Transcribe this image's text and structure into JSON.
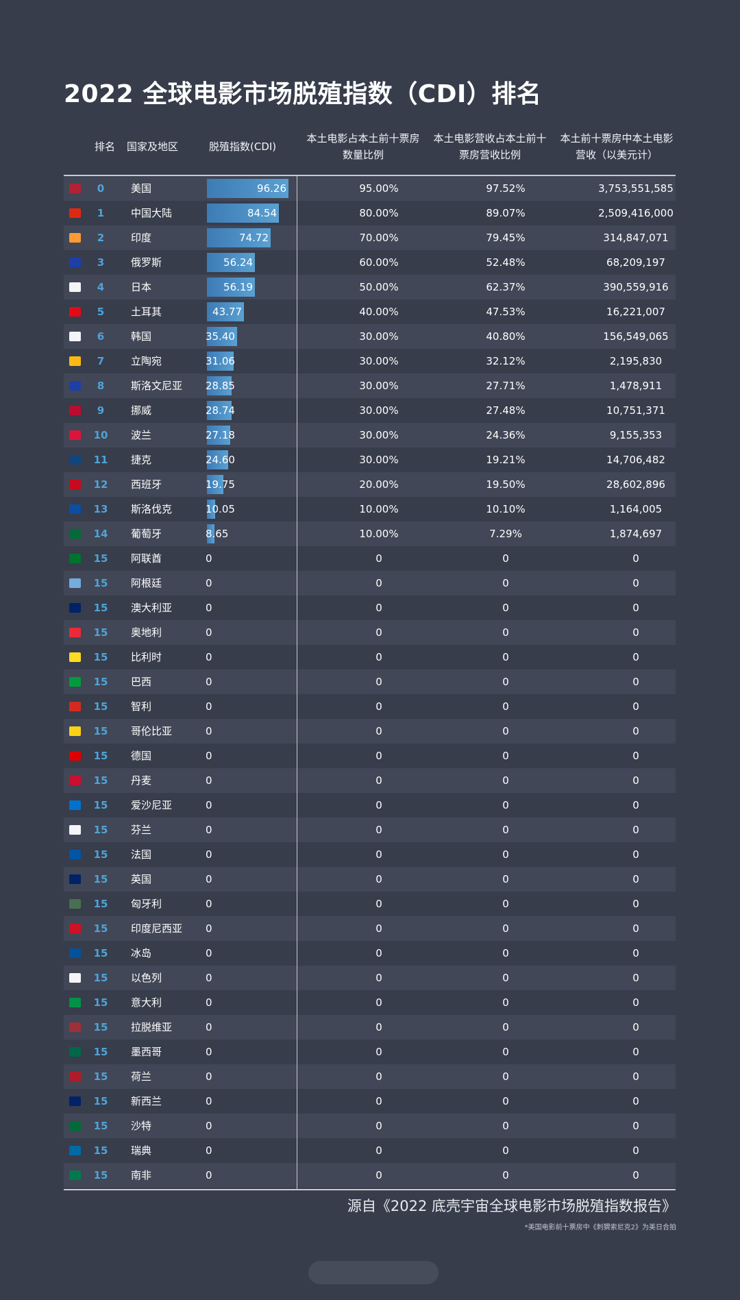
{
  "title": "2022 全球电影市场脱殖指数（CDI）排名",
  "headers": {
    "rank": "排名",
    "country": "国家及地区",
    "cdi": "脱殖指数(CDI)",
    "share_line1": "本土电影占本土前十票房",
    "share_line2": "数量比例",
    "rev_line1": "本土电影营收占本土前十",
    "rev_line2": "票房营收比例",
    "box_line1": "本土前十票房中本土电影",
    "box_line2": "营收（以美元计）"
  },
  "colors": {
    "background": "#373d4b",
    "row_alt": "#414756",
    "rank_text": "#4fa3d8",
    "bar": "#4a8ec6"
  },
  "chart_data": {
    "type": "table",
    "title": "2022 全球电影市场脱殖指数（CDI）排名",
    "cdi_axis_max": 100,
    "rows": [
      {
        "flag": "flag-us",
        "rank": "0",
        "country": "美国",
        "cdi": 96.26,
        "cdi_label": "96.26",
        "share": "95.00%",
        "rev_share": "97.52%",
        "box_office": "3,753,551,585"
      },
      {
        "flag": "flag-cn",
        "rank": "1",
        "country": "中国大陆",
        "cdi": 84.54,
        "cdi_label": "84.54",
        "share": "80.00%",
        "rev_share": "89.07%",
        "box_office": "2,509,416,000"
      },
      {
        "flag": "flag-in",
        "rank": "2",
        "country": "印度",
        "cdi": 74.72,
        "cdi_label": "74.72",
        "share": "70.00%",
        "rev_share": "79.45%",
        "box_office": "314,847,071"
      },
      {
        "flag": "flag-ru",
        "rank": "3",
        "country": "俄罗斯",
        "cdi": 56.24,
        "cdi_label": "56.24",
        "share": "60.00%",
        "rev_share": "52.48%",
        "box_office": "68,209,197"
      },
      {
        "flag": "flag-jp",
        "rank": "4",
        "country": "日本",
        "cdi": 56.19,
        "cdi_label": "56.19",
        "share": "50.00%",
        "rev_share": "62.37%",
        "box_office": "390,559,916"
      },
      {
        "flag": "flag-tr",
        "rank": "5",
        "country": "土耳其",
        "cdi": 43.77,
        "cdi_label": "43.77",
        "share": "40.00%",
        "rev_share": "47.53%",
        "box_office": "16,221,007"
      },
      {
        "flag": "flag-kr",
        "rank": "6",
        "country": "韩国",
        "cdi": 35.4,
        "cdi_label": "35.40",
        "share": "30.00%",
        "rev_share": "40.80%",
        "box_office": "156,549,065"
      },
      {
        "flag": "flag-lt",
        "rank": "7",
        "country": "立陶宛",
        "cdi": 31.06,
        "cdi_label": "31.06",
        "share": "30.00%",
        "rev_share": "32.12%",
        "box_office": "2,195,830"
      },
      {
        "flag": "flag-si",
        "rank": "8",
        "country": "斯洛文尼亚",
        "cdi": 28.85,
        "cdi_label": "28.85",
        "share": "30.00%",
        "rev_share": "27.71%",
        "box_office": "1,478,911"
      },
      {
        "flag": "flag-no",
        "rank": "9",
        "country": "挪威",
        "cdi": 28.74,
        "cdi_label": "28.74",
        "share": "30.00%",
        "rev_share": "27.48%",
        "box_office": "10,751,371"
      },
      {
        "flag": "flag-pl",
        "rank": "10",
        "country": "波兰",
        "cdi": 27.18,
        "cdi_label": "27.18",
        "share": "30.00%",
        "rev_share": "24.36%",
        "box_office": "9,155,353"
      },
      {
        "flag": "flag-cz",
        "rank": "11",
        "country": "捷克",
        "cdi": 24.6,
        "cdi_label": "24.60",
        "share": "30.00%",
        "rev_share": "19.21%",
        "box_office": "14,706,482"
      },
      {
        "flag": "flag-es",
        "rank": "12",
        "country": "西班牙",
        "cdi": 19.75,
        "cdi_label": "19.75",
        "share": "20.00%",
        "rev_share": "19.50%",
        "box_office": "28,602,896"
      },
      {
        "flag": "flag-sk",
        "rank": "13",
        "country": "斯洛伐克",
        "cdi": 10.05,
        "cdi_label": "10.05",
        "share": "10.00%",
        "rev_share": "10.10%",
        "box_office": "1,164,005"
      },
      {
        "flag": "flag-pt",
        "rank": "14",
        "country": "葡萄牙",
        "cdi": 8.65,
        "cdi_label": "8.65",
        "share": "10.00%",
        "rev_share": "7.29%",
        "box_office": "1,874,697"
      },
      {
        "flag": "flag-ae",
        "rank": "15",
        "country": "阿联酋",
        "cdi": 0,
        "cdi_label": "0",
        "share": "0",
        "rev_share": "0",
        "box_office": "0"
      },
      {
        "flag": "flag-ar",
        "rank": "15",
        "country": "阿根廷",
        "cdi": 0,
        "cdi_label": "0",
        "share": "0",
        "rev_share": "0",
        "box_office": "0"
      },
      {
        "flag": "flag-au",
        "rank": "15",
        "country": "澳大利亚",
        "cdi": 0,
        "cdi_label": "0",
        "share": "0",
        "rev_share": "0",
        "box_office": "0"
      },
      {
        "flag": "flag-at",
        "rank": "15",
        "country": "奥地利",
        "cdi": 0,
        "cdi_label": "0",
        "share": "0",
        "rev_share": "0",
        "box_office": "0"
      },
      {
        "flag": "flag-be",
        "rank": "15",
        "country": "比利时",
        "cdi": 0,
        "cdi_label": "0",
        "share": "0",
        "rev_share": "0",
        "box_office": "0"
      },
      {
        "flag": "flag-br",
        "rank": "15",
        "country": "巴西",
        "cdi": 0,
        "cdi_label": "0",
        "share": "0",
        "rev_share": "0",
        "box_office": "0"
      },
      {
        "flag": "flag-cl",
        "rank": "15",
        "country": "智利",
        "cdi": 0,
        "cdi_label": "0",
        "share": "0",
        "rev_share": "0",
        "box_office": "0"
      },
      {
        "flag": "flag-co",
        "rank": "15",
        "country": "哥伦比亚",
        "cdi": 0,
        "cdi_label": "0",
        "share": "0",
        "rev_share": "0",
        "box_office": "0"
      },
      {
        "flag": "flag-de",
        "rank": "15",
        "country": "德国",
        "cdi": 0,
        "cdi_label": "0",
        "share": "0",
        "rev_share": "0",
        "box_office": "0"
      },
      {
        "flag": "flag-dk",
        "rank": "15",
        "country": "丹麦",
        "cdi": 0,
        "cdi_label": "0",
        "share": "0",
        "rev_share": "0",
        "box_office": "0"
      },
      {
        "flag": "flag-ee",
        "rank": "15",
        "country": "爱沙尼亚",
        "cdi": 0,
        "cdi_label": "0",
        "share": "0",
        "rev_share": "0",
        "box_office": "0"
      },
      {
        "flag": "flag-fi",
        "rank": "15",
        "country": "芬兰",
        "cdi": 0,
        "cdi_label": "0",
        "share": "0",
        "rev_share": "0",
        "box_office": "0"
      },
      {
        "flag": "flag-fr",
        "rank": "15",
        "country": "法国",
        "cdi": 0,
        "cdi_label": "0",
        "share": "0",
        "rev_share": "0",
        "box_office": "0"
      },
      {
        "flag": "flag-gb",
        "rank": "15",
        "country": "英国",
        "cdi": 0,
        "cdi_label": "0",
        "share": "0",
        "rev_share": "0",
        "box_office": "0"
      },
      {
        "flag": "flag-hu",
        "rank": "15",
        "country": "匈牙利",
        "cdi": 0,
        "cdi_label": "0",
        "share": "0",
        "rev_share": "0",
        "box_office": "0"
      },
      {
        "flag": "flag-id",
        "rank": "15",
        "country": "印度尼西亚",
        "cdi": 0,
        "cdi_label": "0",
        "share": "0",
        "rev_share": "0",
        "box_office": "0"
      },
      {
        "flag": "flag-is",
        "rank": "15",
        "country": "冰岛",
        "cdi": 0,
        "cdi_label": "0",
        "share": "0",
        "rev_share": "0",
        "box_office": "0"
      },
      {
        "flag": "flag-il",
        "rank": "15",
        "country": "以色列",
        "cdi": 0,
        "cdi_label": "0",
        "share": "0",
        "rev_share": "0",
        "box_office": "0"
      },
      {
        "flag": "flag-it",
        "rank": "15",
        "country": "意大利",
        "cdi": 0,
        "cdi_label": "0",
        "share": "0",
        "rev_share": "0",
        "box_office": "0"
      },
      {
        "flag": "flag-lv",
        "rank": "15",
        "country": "拉脱维亚",
        "cdi": 0,
        "cdi_label": "0",
        "share": "0",
        "rev_share": "0",
        "box_office": "0"
      },
      {
        "flag": "flag-mx",
        "rank": "15",
        "country": "墨西哥",
        "cdi": 0,
        "cdi_label": "0",
        "share": "0",
        "rev_share": "0",
        "box_office": "0"
      },
      {
        "flag": "flag-nl",
        "rank": "15",
        "country": "荷兰",
        "cdi": 0,
        "cdi_label": "0",
        "share": "0",
        "rev_share": "0",
        "box_office": "0"
      },
      {
        "flag": "flag-nz",
        "rank": "15",
        "country": "新西兰",
        "cdi": 0,
        "cdi_label": "0",
        "share": "0",
        "rev_share": "0",
        "box_office": "0"
      },
      {
        "flag": "flag-sa",
        "rank": "15",
        "country": "沙特",
        "cdi": 0,
        "cdi_label": "0",
        "share": "0",
        "rev_share": "0",
        "box_office": "0"
      },
      {
        "flag": "flag-se",
        "rank": "15",
        "country": "瑞典",
        "cdi": 0,
        "cdi_label": "0",
        "share": "0",
        "rev_share": "0",
        "box_office": "0"
      },
      {
        "flag": "flag-za",
        "rank": "15",
        "country": "南非",
        "cdi": 0,
        "cdi_label": "0",
        "share": "0",
        "rev_share": "0",
        "box_office": "0"
      }
    ]
  },
  "flag_colors": {
    "flag-us": "#b22234",
    "flag-cn": "#de2910",
    "flag-in": "#ff9933",
    "flag-ru": "#1c3fa8",
    "flag-jp": "#f5f5f5",
    "flag-tr": "#e30a17",
    "flag-kr": "#f5f5f5",
    "flag-lt": "#fdb913",
    "flag-si": "#1c3fa8",
    "flag-no": "#ba0c2f",
    "flag-pl": "#dc143c",
    "flag-cz": "#11457e",
    "flag-es": "#c60b1e",
    "flag-sk": "#0b4ea2",
    "flag-pt": "#046a38",
    "flag-ae": "#00732f",
    "flag-ar": "#74acdf",
    "flag-au": "#012169",
    "flag-at": "#ed2939",
    "flag-be": "#fdda24",
    "flag-br": "#009c3b",
    "flag-cl": "#d52b1e",
    "flag-co": "#fcd116",
    "flag-de": "#dd0000",
    "flag-dk": "#c8102e",
    "flag-ee": "#0072ce",
    "flag-fi": "#f5f5f5",
    "flag-fr": "#0055a4",
    "flag-gb": "#012169",
    "flag-hu": "#477050",
    "flag-id": "#ce1126",
    "flag-is": "#02529c",
    "flag-il": "#f5f5f5",
    "flag-it": "#009246",
    "flag-lv": "#9e3039",
    "flag-mx": "#006847",
    "flag-nl": "#ae1c28",
    "flag-nz": "#012169",
    "flag-sa": "#006c35",
    "flag-se": "#006aa7",
    "flag-za": "#007a4d"
  },
  "source": "源自《2022 底壳宇宙全球电影市场脱殖指数报告》",
  "footnote": "*美国电影前十票房中《刺猬索尼克2》为美日合拍"
}
